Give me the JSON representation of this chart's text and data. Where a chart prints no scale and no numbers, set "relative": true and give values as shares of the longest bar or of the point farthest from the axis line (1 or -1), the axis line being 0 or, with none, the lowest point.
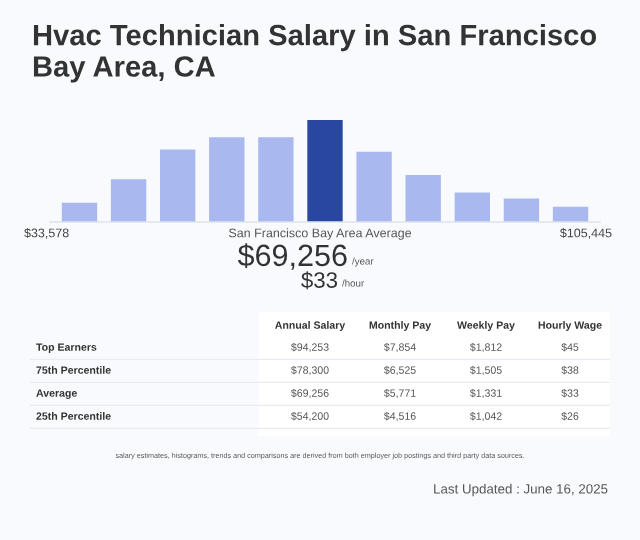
{
  "chart_data": [
    {
      "type": "bar",
      "title": "Hvac Technician Salary in San Francisco Bay Area, CA",
      "relative": true,
      "categories": [
        null,
        null,
        null,
        null,
        null,
        null,
        null,
        null,
        null,
        null,
        null
      ],
      "values": [
        0.19,
        0.42,
        0.71,
        0.83,
        0.83,
        1,
        0.69,
        0.46,
        0.29,
        0.23,
        0.15
      ],
      "colors": [
        "#a9b9ef",
        "#a9b9ef",
        "#a9b9ef",
        "#a9b9ef",
        "#a9b9ef",
        "#2747a1",
        "#a9b9ef",
        "#a9b9ef",
        "#a9b9ef",
        "#a9b9ef",
        "#a9b9ef"
      ],
      "annotations": [
        "$33,578",
        "San Francisco Bay Area Average",
        "$105,445",
        "$69,256",
        "/year",
        "$33",
        "/hour"
      ]
    },
    {
      "type": "other",
      "categories": [
        "Annual Salary",
        "Monthly Pay",
        "Weekly Pay",
        "Hourly Wage"
      ],
      "y_categories": [
        "Top Earners",
        "75th Percentile",
        "Average",
        "25th Percentile"
      ],
      "cell_labels": [
        [
          "$94,253",
          "$7,854",
          "$1,812",
          "$45"
        ],
        [
          "$78,300",
          "$6,525",
          "$1,505",
          "$38"
        ],
        [
          "$69,256",
          "$5,771",
          "$1,331",
          "$33"
        ],
        [
          "$54,200",
          "$4,516",
          "$1,042",
          "$26"
        ]
      ],
      "annotations": [
        "salary estimates, histograms, trends and comparisons are derived from both employer job postings and third party data sources.",
        "Last Updated : June 16, 2025"
      ]
    }
  ]
}
